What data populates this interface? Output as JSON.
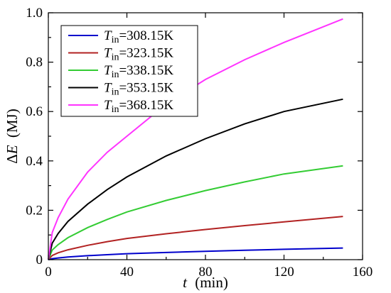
{
  "chart_data": {
    "type": "line",
    "xlabel_var": "t",
    "xlabel_unit": "(min)",
    "ylabel_prefix": "Δ",
    "ylabel_var": "E",
    "ylabel_unit": "(MJ)",
    "xlim": [
      0,
      160
    ],
    "ylim": [
      0,
      1.0
    ],
    "xticks": [
      0,
      40,
      80,
      120,
      160
    ],
    "yticks": [
      0,
      0.2,
      0.4,
      0.6,
      0.8,
      1.0
    ],
    "xtick_labels": [
      "0",
      "40",
      "80",
      "120",
      "160"
    ],
    "ytick_labels": [
      "0",
      "0.2",
      "0.4",
      "0.6",
      "0.8",
      "1.0"
    ],
    "grid": false,
    "legend_placement": "top-left",
    "x": [
      0,
      2,
      5,
      10,
      20,
      30,
      40,
      60,
      80,
      100,
      120,
      150
    ],
    "series": [
      {
        "name_var": "T",
        "name_sub": "in",
        "name_value": "=308.15K",
        "color": "#0000cc",
        "values": [
          0,
          0.004,
          0.007,
          0.011,
          0.016,
          0.02,
          0.024,
          0.029,
          0.034,
          0.038,
          0.042,
          0.047
        ]
      },
      {
        "name_var": "T",
        "name_sub": "in",
        "name_value": "=323.15K",
        "color": "#b22222",
        "values": [
          0,
          0.017,
          0.028,
          0.04,
          0.058,
          0.073,
          0.086,
          0.105,
          0.122,
          0.138,
          0.153,
          0.175
        ]
      },
      {
        "name_var": "T",
        "name_sub": "in",
        "name_value": "=338.15K",
        "color": "#33cc33",
        "values": [
          0,
          0.039,
          0.061,
          0.089,
          0.13,
          0.163,
          0.193,
          0.24,
          0.28,
          0.315,
          0.347,
          0.38
        ]
      },
      {
        "name_var": "T",
        "name_sub": "in",
        "name_value": "=353.15K",
        "color": "#000000",
        "values": [
          0,
          0.067,
          0.106,
          0.155,
          0.225,
          0.284,
          0.335,
          0.42,
          0.49,
          0.55,
          0.6,
          0.65
        ]
      },
      {
        "name_var": "T",
        "name_sub": "in",
        "name_value": "=368.15K",
        "color": "#ff33ff",
        "values": [
          0,
          0.11,
          0.17,
          0.245,
          0.355,
          0.435,
          0.5,
          0.63,
          0.73,
          0.81,
          0.88,
          0.975
        ]
      }
    ]
  }
}
